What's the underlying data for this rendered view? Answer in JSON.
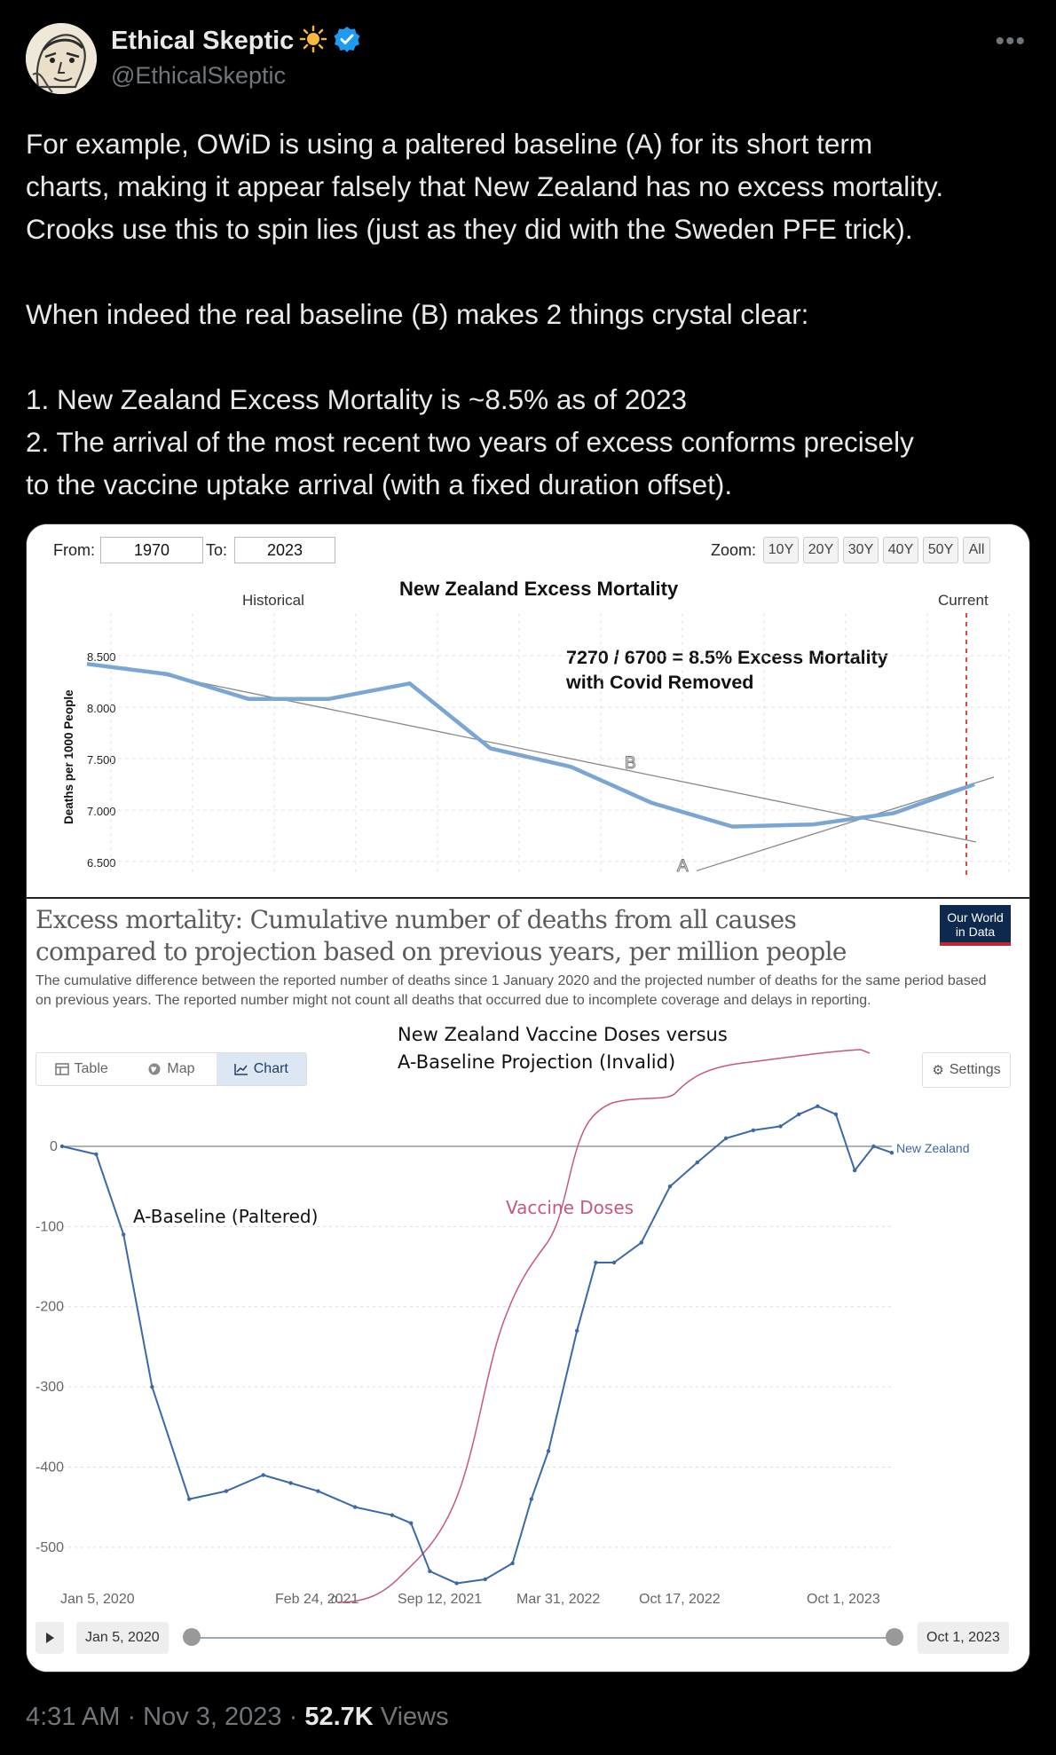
{
  "author": {
    "name": "Ethical Skeptic",
    "name_suffix_emoji": "☀️",
    "handle": "@EthicalSkeptic",
    "verified": true
  },
  "tweet": {
    "lines": [
      "For example, OWiD is using a paltered baseline (A) for its short term",
      "charts, making it appear falsely that New Zealand has no excess mortality.",
      "Crooks use this to spin lies (just as they did with the Sweden PFE trick).",
      "",
      "When indeed the real baseline (B) makes 2 things crystal clear:",
      "",
      "1. New Zealand Excess Mortality is ~8.5% as of 2023",
      "2. The arrival of the most recent two years of excess conforms precisely",
      "to the vaccine uptake arrival (with a fixed duration offset)."
    ]
  },
  "upper_chart": {
    "from_label": "From:",
    "from_value": "1970",
    "to_label": "To:",
    "to_value": "2023",
    "zoom_label": "Zoom:",
    "zoom_buttons": [
      "10Y",
      "20Y",
      "30Y",
      "40Y",
      "50Y",
      "All"
    ],
    "title": "New Zealand Excess Mortality",
    "historical_label": "Historical",
    "current_label": "Current",
    "y_axis_label": "Deaths per 1000 People",
    "y_ticks": [
      "8.500",
      "8.000",
      "7.500",
      "7.000",
      "6.500"
    ],
    "annotation_line1": "7270 / 6700 = 8.5% Excess Mortality",
    "annotation_line2": "with Covid Removed",
    "label_b": "B",
    "label_a": "A"
  },
  "lower_chart": {
    "title": "Excess mortality: Cumulative number of deaths from all causes compared to projection based on previous years, per million people",
    "subtitle": "The cumulative difference between the reported number of deaths since 1 January 2020 and the projected number of deaths for the same period based on previous years. The reported number might not count all deaths that occurred due to incomplete coverage and delays in reporting.",
    "logo_line1": "Our World",
    "logo_line2": "in Data",
    "tabs": [
      "Table",
      "Map",
      "Chart"
    ],
    "active_tab": "Chart",
    "settings_label": "Settings",
    "vaccine_annotation_line1": "New Zealand Vaccine Doses versus",
    "vaccine_annotation_line2": "A-Baseline Projection (Invalid)",
    "baseline_label": "A-Baseline (Paltered)",
    "vaccine_label": "Vaccine Doses",
    "vaccine_zero_label": "0",
    "series_label": "New Zealand",
    "timeline_start": "Jan 5, 2020",
    "timeline_end": "Oct 1, 2023"
  },
  "chart_data": [
    {
      "type": "line",
      "title": "New Zealand Excess Mortality",
      "ylabel": "Deaths per 1000 People",
      "ylim": [
        6.5,
        8.5
      ],
      "y_ticks": [
        8.5,
        8.0,
        7.5,
        7.0,
        6.5
      ],
      "series": [
        {
          "values": [
            8.42,
            8.32,
            8.08,
            8.08,
            8.23,
            7.6,
            7.42,
            7.07,
            6.84,
            6.86,
            6.97,
            7.25
          ]
        }
      ],
      "trend_lines": [
        {
          "label": "B",
          "from": 8.39,
          "to": 6.69
        },
        {
          "label": "A",
          "from": 6.41,
          "to": 7.32
        }
      ],
      "annotation": "7270 / 6700 = 8.5% Excess Mortality with Covid Removed",
      "legend": "none",
      "grid": true
    },
    {
      "type": "line",
      "title": "Excess mortality: Cumulative number of deaths from all causes compared to projection based on previous years, per million people",
      "ylim": [
        -550,
        0
      ],
      "y_ticks": [
        0,
        -100,
        -200,
        -300,
        -400,
        -500
      ],
      "x_ticks": [
        "Jan 5, 2020",
        "Feb 24, 2021",
        "Sep 12, 2021",
        "Mar 31, 2022",
        "Oct 17, 2022",
        "Oct 1, 2023"
      ],
      "series": [
        {
          "name": "New Zealand",
          "x": [
            "2020-01-05",
            "2020-03-01",
            "2020-04-15",
            "2020-06-01",
            "2020-08-01",
            "2020-10-01",
            "2020-12-01",
            "2021-01-15",
            "2021-03-01",
            "2021-05-01",
            "2021-07-01",
            "2021-08-01",
            "2021-09-01",
            "2021-10-15",
            "2021-12-01",
            "2022-01-15",
            "2022-02-15",
            "2022-03-15",
            "2022-05-01",
            "2022-06-01",
            "2022-07-01",
            "2022-08-15",
            "2022-10-01",
            "2022-11-15",
            "2023-01-01",
            "2023-02-15",
            "2023-04-01",
            "2023-05-01",
            "2023-06-01",
            "2023-07-01",
            "2023-08-01",
            "2023-09-01",
            "2023-10-01"
          ],
          "values": [
            0,
            -10,
            -110,
            -300,
            -440,
            -430,
            -410,
            -420,
            -430,
            -450,
            -460,
            -470,
            -530,
            -545,
            -540,
            -520,
            -440,
            -380,
            -230,
            -145,
            -145,
            -120,
            -50,
            -20,
            10,
            20,
            25,
            40,
            50,
            40,
            -30,
            0,
            -8
          ]
        }
      ],
      "overlays": [
        "A-Baseline (Paltered)",
        "Vaccine Doses"
      ],
      "legend": "inline-right",
      "grid": true
    }
  ]
}
